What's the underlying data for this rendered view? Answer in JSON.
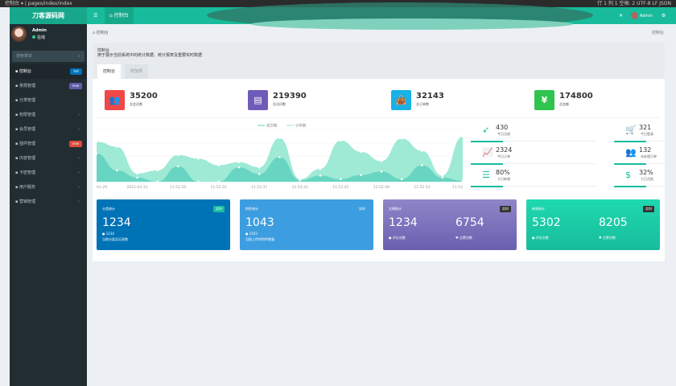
{
  "browser": {
    "address": "控制台 ▾  |  pages/index/index",
    "right": "行 1  列 1  空格: 2  UTF-8  LF  JSON"
  },
  "header": {
    "logo": "刀客源码网",
    "menu_icon": "☰",
    "tab": "控制台",
    "user": "Admin"
  },
  "sidebar": {
    "user": "Admin",
    "status": "在线",
    "search_placeholder": "搜索菜单",
    "items": [
      {
        "label": "控制台",
        "badge": "hot",
        "badge_color": "#0073b7",
        "active": true
      },
      {
        "label": "常规管理",
        "badge": "new",
        "badge_color": "#605ca8"
      },
      {
        "label": "分类管理"
      },
      {
        "label": "权限管理",
        "chevron": true
      },
      {
        "label": "会员管理",
        "chevron": true
      },
      {
        "label": "插件管理",
        "badge": "new",
        "badge_color": "#dd4b39"
      },
      {
        "label": "内容管理",
        "chevron": true
      },
      {
        "label": "卡密管理",
        "chevron": true
      },
      {
        "label": "用户服务",
        "chevron": true
      },
      {
        "label": "营销管理",
        "chevron": true
      }
    ]
  },
  "breadcrumb": {
    "left": "控制台",
    "right": "控制台"
  },
  "panel": {
    "title": "控制台",
    "desc": "用于展示当前系统中的统计数据、统计报表及重要实时数据",
    "tabs": [
      "控制台",
      "附加项"
    ]
  },
  "stats": [
    {
      "value": "35200",
      "label": "总会员数",
      "color": "#f04848",
      "icon": "users-icon"
    },
    {
      "value": "219390",
      "label": "总访问数",
      "color": "#6f5cb8",
      "icon": "book-icon"
    },
    {
      "value": "32143",
      "label": "总订单数",
      "color": "#1ab1e6",
      "icon": "shopping-bag-icon"
    },
    {
      "value": "174800",
      "label": "总金额",
      "color": "#2fc44e",
      "icon": "yen-icon"
    }
  ],
  "mini_stats": [
    {
      "value": "430",
      "label": "今日注册",
      "icon": "rocket-icon"
    },
    {
      "value": "321",
      "label": "今日登录",
      "icon": "cart-icon"
    },
    {
      "value": "2324",
      "label": "今日订单",
      "icon": "line-chart-icon"
    },
    {
      "value": "132",
      "label": "未处理订单",
      "icon": "users-icon"
    },
    {
      "value": "80%",
      "label": "七日新增",
      "icon": "list-icon"
    },
    {
      "value": "32%",
      "label": "七日活跃",
      "icon": "dollar-icon"
    }
  ],
  "cards": [
    {
      "title": "分类统计",
      "badge": "实时",
      "value": "1234",
      "sub": "1234",
      "desc": "当前分类总记录数",
      "bg": "#0073b7",
      "badge_bg": "#18bc9c"
    },
    {
      "title": "附件统计",
      "badge": "实时",
      "value": "1043",
      "sub": "2103",
      "desc": "当前上传的附件数量",
      "bg": "#3c9ee0",
      "badge_bg": "#3c9ee0"
    },
    {
      "title": "文章统计",
      "badge": "实时",
      "value": "1234",
      "value2": "6754",
      "sub": "评论次数",
      "sub2": "点赞次数",
      "bg": "linear-gradient(#8e86c8,#6a5fb0)",
      "badge_bg": "#333"
    },
    {
      "title": "新闻统计",
      "badge": "实时",
      "value": "5302",
      "value2": "8205",
      "sub": "评论次数",
      "sub2": "点赞次数",
      "bg": "linear-gradient(#1fd9b0,#18bc9c)",
      "badge_bg": "#333"
    }
  ],
  "chart_data": {
    "type": "area",
    "legend": [
      "成交数",
      "订单数"
    ],
    "legend_placement": "top",
    "x": [
      "01-29",
      "",
      "2021-03-31",
      "",
      "11:52:29",
      "",
      "11:52:33",
      "",
      "11:52:37",
      "",
      "11:52:41",
      "",
      "11:52:45",
      "",
      "11:52:49",
      "",
      "11:52:53",
      "",
      "11:53"
    ],
    "series": [
      {
        "name": "成交数",
        "values": [
          55,
          22,
          8,
          0,
          30,
          0,
          0,
          28,
          15,
          48,
          3,
          12,
          5,
          13,
          20,
          5,
          32,
          8,
          2
        ],
        "color": "#62d3c0"
      },
      {
        "name": "订单数",
        "values": [
          78,
          68,
          16,
          22,
          52,
          45,
          32,
          38,
          28,
          85,
          5,
          25,
          80,
          58,
          40,
          84,
          60,
          12,
          88
        ],
        "color": "#94e8d0"
      }
    ],
    "grid": true
  }
}
